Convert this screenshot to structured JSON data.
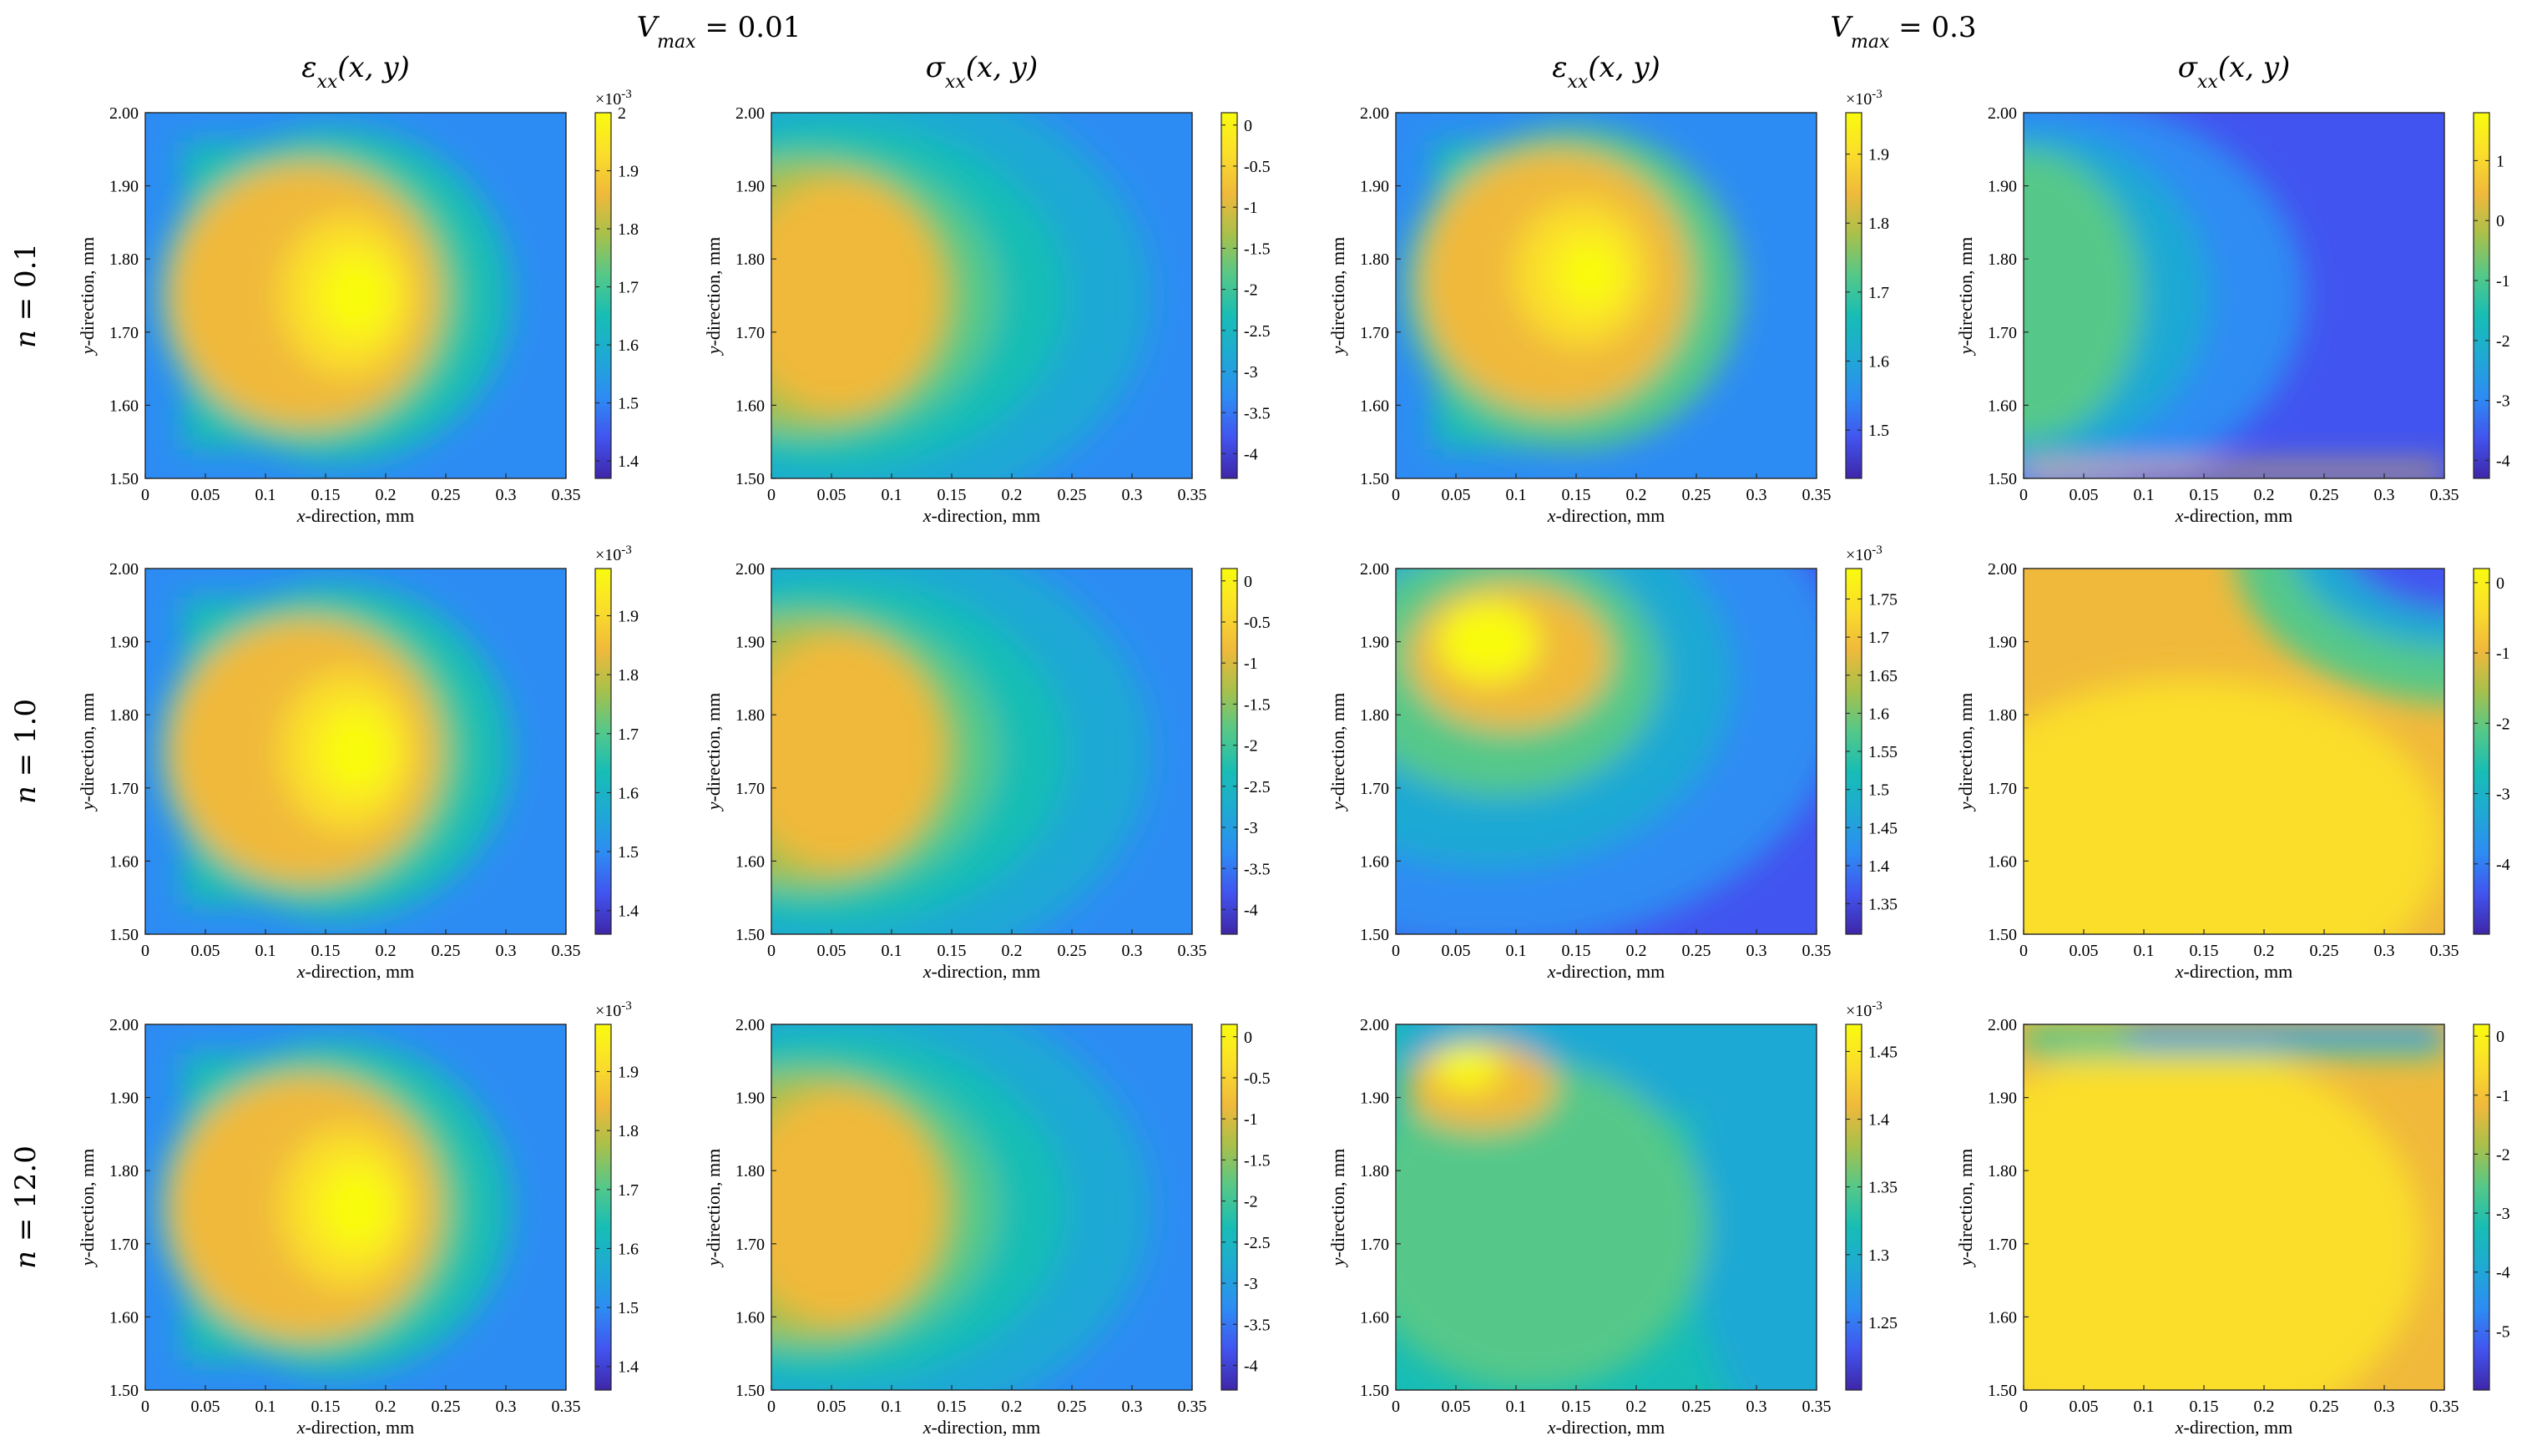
{
  "figure": {
    "group_labels": [
      {
        "var": "V",
        "sub": "max",
        "rest": " = 0.01"
      },
      {
        "var": "V",
        "sub": "max",
        "rest": " = 0.3"
      }
    ],
    "column_titles": [
      {
        "sym": "ε",
        "sub": "xx",
        "args": "(x, y)"
      },
      {
        "sym": "σ",
        "sub": "xx",
        "args": "(x, y)"
      },
      {
        "sym": "ε",
        "sub": "xx",
        "args": "(x, y)"
      },
      {
        "sym": "σ",
        "sub": "xx",
        "args": "(x, y)"
      }
    ],
    "row_labels": [
      {
        "var": "n",
        "rest": " = 0.1"
      },
      {
        "var": "n",
        "rest": " = 1.0"
      },
      {
        "var": "n",
        "rest": " = 12.0"
      }
    ],
    "colormap": "parula",
    "colormap_stops": [
      "#3e26a8",
      "#4254ef",
      "#2d8cf3",
      "#1fa9d4",
      "#17bdb5",
      "#55c889",
      "#a8c04b",
      "#f0b93b",
      "#fade2b",
      "#f9fb0e"
    ]
  },
  "chart_data": [
    {
      "type": "heatmap",
      "row": 0,
      "col": 0,
      "title": "ε_xx(x,y)",
      "xlabel": "x-direction, mm",
      "ylabel": "y-direction, mm",
      "xlim": [
        0,
        0.35
      ],
      "ylim": [
        1.5,
        2.0
      ],
      "xticks": [
        "0",
        "0.05",
        "0.1",
        "0.15",
        "0.2",
        "0.25",
        "0.3",
        "0.35"
      ],
      "yticks": [
        "1.50",
        "1.60",
        "1.70",
        "1.80",
        "1.90",
        "2.00"
      ],
      "colorbar": {
        "min": 1.37,
        "max": 2.0,
        "ticks": [
          {
            "v": 1.4,
            "label": "1.4"
          },
          {
            "v": 1.5,
            "label": "1.5"
          },
          {
            "v": 1.6,
            "label": "1.6"
          },
          {
            "v": 1.7,
            "label": "1.7"
          },
          {
            "v": 1.8,
            "label": "1.8"
          },
          {
            "v": 1.9,
            "label": "1.9"
          },
          {
            "v": 2.0,
            "label": "2"
          }
        ],
        "exponent_base": "×10",
        "exponent": "-3"
      },
      "pattern": "strain_a"
    },
    {
      "type": "heatmap",
      "row": 0,
      "col": 1,
      "title": "σ_xx(x,y)",
      "xlabel": "x-direction, mm",
      "ylabel": "y-direction, mm",
      "xlim": [
        0,
        0.35
      ],
      "ylim": [
        1.5,
        2.0
      ],
      "xticks": [
        "0",
        "0.05",
        "0.1",
        "0.15",
        "0.2",
        "0.25",
        "0.3",
        "0.35"
      ],
      "yticks": [
        "1.50",
        "1.60",
        "1.70",
        "1.80",
        "1.90",
        "2.00"
      ],
      "colorbar": {
        "min": -4.3,
        "max": 0.15,
        "ticks": [
          {
            "v": 0,
            "label": "0"
          },
          {
            "v": -0.5,
            "label": "-0.5"
          },
          {
            "v": -1,
            "label": "-1"
          },
          {
            "v": -1.5,
            "label": "-1.5"
          },
          {
            "v": -2,
            "label": "-2"
          },
          {
            "v": -2.5,
            "label": "-2.5"
          },
          {
            "v": -3,
            "label": "-3"
          },
          {
            "v": -3.5,
            "label": "-3.5"
          },
          {
            "v": -4,
            "label": "-4"
          }
        ],
        "exponent_base": "",
        "exponent": ""
      },
      "pattern": "stress_a"
    },
    {
      "type": "heatmap",
      "row": 0,
      "col": 2,
      "title": "ε_xx(x,y)",
      "xlabel": "x-direction, mm",
      "ylabel": "y-direction, mm",
      "xlim": [
        0,
        0.35
      ],
      "ylim": [
        1.5,
        2.0
      ],
      "xticks": [
        "0",
        "0.05",
        "0.1",
        "0.15",
        "0.2",
        "0.25",
        "0.3",
        "0.35"
      ],
      "yticks": [
        "1.50",
        "1.60",
        "1.70",
        "1.80",
        "1.90",
        "2.00"
      ],
      "colorbar": {
        "min": 1.43,
        "max": 1.96,
        "ticks": [
          {
            "v": 1.5,
            "label": "1.5"
          },
          {
            "v": 1.6,
            "label": "1.6"
          },
          {
            "v": 1.7,
            "label": "1.7"
          },
          {
            "v": 1.8,
            "label": "1.8"
          },
          {
            "v": 1.9,
            "label": "1.9"
          }
        ],
        "exponent_base": "×10",
        "exponent": "-3"
      },
      "pattern": "strain_b"
    },
    {
      "type": "heatmap",
      "row": 0,
      "col": 3,
      "title": "σ_xx(x,y)",
      "xlabel": "x-direction, mm",
      "ylabel": "y-direction, mm",
      "xlim": [
        0,
        0.35
      ],
      "ylim": [
        1.5,
        2.0
      ],
      "xticks": [
        "0",
        "0.05",
        "0.1",
        "0.15",
        "0.2",
        "0.25",
        "0.3",
        "0.35"
      ],
      "yticks": [
        "1.50",
        "1.60",
        "1.70",
        "1.80",
        "1.90",
        "2.00"
      ],
      "colorbar": {
        "min": -4.3,
        "max": 1.8,
        "ticks": [
          {
            "v": 1,
            "label": "1"
          },
          {
            "v": 0,
            "label": "0"
          },
          {
            "v": -1,
            "label": "-1"
          },
          {
            "v": -2,
            "label": "-2"
          },
          {
            "v": -3,
            "label": "-3"
          },
          {
            "v": -4,
            "label": "-4"
          }
        ],
        "exponent_base": "",
        "exponent": ""
      },
      "pattern": "stress_b"
    },
    {
      "type": "heatmap",
      "row": 1,
      "col": 0,
      "title": "ε_xx(x,y)",
      "xlabel": "x-direction, mm",
      "ylabel": "y-direction, mm",
      "xlim": [
        0,
        0.35
      ],
      "ylim": [
        1.5,
        2.0
      ],
      "xticks": [
        "0",
        "0.05",
        "0.1",
        "0.15",
        "0.2",
        "0.25",
        "0.3",
        "0.35"
      ],
      "yticks": [
        "1.50",
        "1.60",
        "1.70",
        "1.80",
        "1.90",
        "2.00"
      ],
      "colorbar": {
        "min": 1.36,
        "max": 1.98,
        "ticks": [
          {
            "v": 1.4,
            "label": "1.4"
          },
          {
            "v": 1.5,
            "label": "1.5"
          },
          {
            "v": 1.6,
            "label": "1.6"
          },
          {
            "v": 1.7,
            "label": "1.7"
          },
          {
            "v": 1.8,
            "label": "1.8"
          },
          {
            "v": 1.9,
            "label": "1.9"
          }
        ],
        "exponent_base": "×10",
        "exponent": "-3"
      },
      "pattern": "strain_a"
    },
    {
      "type": "heatmap",
      "row": 1,
      "col": 1,
      "title": "σ_xx(x,y)",
      "xlabel": "x-direction, mm",
      "ylabel": "y-direction, mm",
      "xlim": [
        0,
        0.35
      ],
      "ylim": [
        1.5,
        2.0
      ],
      "xticks": [
        "0",
        "0.05",
        "0.1",
        "0.15",
        "0.2",
        "0.25",
        "0.3",
        "0.35"
      ],
      "yticks": [
        "1.50",
        "1.60",
        "1.70",
        "1.80",
        "1.90",
        "2.00"
      ],
      "colorbar": {
        "min": -4.3,
        "max": 0.15,
        "ticks": [
          {
            "v": 0,
            "label": "0"
          },
          {
            "v": -0.5,
            "label": "-0.5"
          },
          {
            "v": -1,
            "label": "-1"
          },
          {
            "v": -1.5,
            "label": "-1.5"
          },
          {
            "v": -2,
            "label": "-2"
          },
          {
            "v": -2.5,
            "label": "-2.5"
          },
          {
            "v": -3,
            "label": "-3"
          },
          {
            "v": -3.5,
            "label": "-3.5"
          },
          {
            "v": -4,
            "label": "-4"
          }
        ],
        "exponent_base": "",
        "exponent": ""
      },
      "pattern": "stress_a"
    },
    {
      "type": "heatmap",
      "row": 1,
      "col": 2,
      "title": "ε_xx(x,y)",
      "xlabel": "x-direction, mm",
      "ylabel": "y-direction, mm",
      "xlim": [
        0,
        0.35
      ],
      "ylim": [
        1.5,
        2.0
      ],
      "xticks": [
        "0",
        "0.05",
        "0.1",
        "0.15",
        "0.2",
        "0.25",
        "0.3",
        "0.35"
      ],
      "yticks": [
        "1.50",
        "1.60",
        "1.70",
        "1.80",
        "1.90",
        "2.00"
      ],
      "colorbar": {
        "min": 1.31,
        "max": 1.79,
        "ticks": [
          {
            "v": 1.35,
            "label": "1.35"
          },
          {
            "v": 1.4,
            "label": "1.4"
          },
          {
            "v": 1.45,
            "label": "1.45"
          },
          {
            "v": 1.5,
            "label": "1.5"
          },
          {
            "v": 1.55,
            "label": "1.55"
          },
          {
            "v": 1.6,
            "label": "1.6"
          },
          {
            "v": 1.65,
            "label": "1.65"
          },
          {
            "v": 1.7,
            "label": "1.7"
          },
          {
            "v": 1.75,
            "label": "1.75"
          }
        ],
        "exponent_base": "×10",
        "exponent": "-3"
      },
      "pattern": "strain_c"
    },
    {
      "type": "heatmap",
      "row": 1,
      "col": 3,
      "title": "σ_xx(x,y)",
      "xlabel": "x-direction, mm",
      "ylabel": "y-direction, mm",
      "xlim": [
        0,
        0.35
      ],
      "ylim": [
        1.5,
        2.0
      ],
      "xticks": [
        "0",
        "0.05",
        "0.1",
        "0.15",
        "0.2",
        "0.25",
        "0.3",
        "0.35"
      ],
      "yticks": [
        "1.50",
        "1.60",
        "1.70",
        "1.80",
        "1.90",
        "2.00"
      ],
      "colorbar": {
        "min": -5.0,
        "max": 0.2,
        "ticks": [
          {
            "v": 0,
            "label": "0"
          },
          {
            "v": -1,
            "label": "-1"
          },
          {
            "v": -2,
            "label": "-2"
          },
          {
            "v": -3,
            "label": "-3"
          },
          {
            "v": -4,
            "label": "-4"
          }
        ],
        "exponent_base": "",
        "exponent": ""
      },
      "pattern": "stress_c"
    },
    {
      "type": "heatmap",
      "row": 2,
      "col": 0,
      "title": "ε_xx(x,y)",
      "xlabel": "x-direction, mm",
      "ylabel": "y-direction, mm",
      "xlim": [
        0,
        0.35
      ],
      "ylim": [
        1.5,
        2.0
      ],
      "xticks": [
        "0",
        "0.05",
        "0.1",
        "0.15",
        "0.2",
        "0.25",
        "0.3",
        "0.35"
      ],
      "yticks": [
        "1.50",
        "1.60",
        "1.70",
        "1.80",
        "1.90",
        "2.00"
      ],
      "colorbar": {
        "min": 1.36,
        "max": 1.98,
        "ticks": [
          {
            "v": 1.4,
            "label": "1.4"
          },
          {
            "v": 1.5,
            "label": "1.5"
          },
          {
            "v": 1.6,
            "label": "1.6"
          },
          {
            "v": 1.7,
            "label": "1.7"
          },
          {
            "v": 1.8,
            "label": "1.8"
          },
          {
            "v": 1.9,
            "label": "1.9"
          }
        ],
        "exponent_base": "×10",
        "exponent": "-3"
      },
      "pattern": "strain_a"
    },
    {
      "type": "heatmap",
      "row": 2,
      "col": 1,
      "title": "σ_xx(x,y)",
      "xlabel": "x-direction, mm",
      "ylabel": "y-direction, mm",
      "xlim": [
        0,
        0.35
      ],
      "ylim": [
        1.5,
        2.0
      ],
      "xticks": [
        "0",
        "0.05",
        "0.1",
        "0.15",
        "0.2",
        "0.25",
        "0.3",
        "0.35"
      ],
      "yticks": [
        "1.50",
        "1.60",
        "1.70",
        "1.80",
        "1.90",
        "2.00"
      ],
      "colorbar": {
        "min": -4.3,
        "max": 0.15,
        "ticks": [
          {
            "v": 0,
            "label": "0"
          },
          {
            "v": -0.5,
            "label": "-0.5"
          },
          {
            "v": -1,
            "label": "-1"
          },
          {
            "v": -1.5,
            "label": "-1.5"
          },
          {
            "v": -2,
            "label": "-2"
          },
          {
            "v": -2.5,
            "label": "-2.5"
          },
          {
            "v": -3,
            "label": "-3"
          },
          {
            "v": -3.5,
            "label": "-3.5"
          },
          {
            "v": -4,
            "label": "-4"
          }
        ],
        "exponent_base": "",
        "exponent": ""
      },
      "pattern": "stress_a"
    },
    {
      "type": "heatmap",
      "row": 2,
      "col": 2,
      "title": "ε_xx(x,y)",
      "xlabel": "x-direction, mm",
      "ylabel": "y-direction, mm",
      "xlim": [
        0,
        0.35
      ],
      "ylim": [
        1.5,
        2.0
      ],
      "xticks": [
        "0",
        "0.05",
        "0.1",
        "0.15",
        "0.2",
        "0.25",
        "0.3",
        "0.35"
      ],
      "yticks": [
        "1.50",
        "1.60",
        "1.70",
        "1.80",
        "1.90",
        "2.00"
      ],
      "colorbar": {
        "min": 1.2,
        "max": 1.47,
        "ticks": [
          {
            "v": 1.25,
            "label": "1.25"
          },
          {
            "v": 1.3,
            "label": "1.3"
          },
          {
            "v": 1.35,
            "label": "1.35"
          },
          {
            "v": 1.4,
            "label": "1.4"
          },
          {
            "v": 1.45,
            "label": "1.45"
          }
        ],
        "exponent_base": "×10",
        "exponent": "-3"
      },
      "pattern": "strain_d"
    },
    {
      "type": "heatmap",
      "row": 2,
      "col": 3,
      "title": "σ_xx(x,y)",
      "xlabel": "x-direction, mm",
      "ylabel": "y-direction, mm",
      "xlim": [
        0,
        0.35
      ],
      "ylim": [
        1.5,
        2.0
      ],
      "xticks": [
        "0",
        "0.05",
        "0.1",
        "0.15",
        "0.2",
        "0.25",
        "0.3",
        "0.35"
      ],
      "yticks": [
        "1.50",
        "1.60",
        "1.70",
        "1.80",
        "1.90",
        "2.00"
      ],
      "colorbar": {
        "min": -6.0,
        "max": 0.2,
        "ticks": [
          {
            "v": 0,
            "label": "0"
          },
          {
            "v": -1,
            "label": "-1"
          },
          {
            "v": -2,
            "label": "-2"
          },
          {
            "v": -3,
            "label": "-3"
          },
          {
            "v": -4,
            "label": "-4"
          },
          {
            "v": -5,
            "label": "-5"
          }
        ],
        "exponent_base": "",
        "exponent": ""
      },
      "pattern": "stress_d"
    }
  ]
}
